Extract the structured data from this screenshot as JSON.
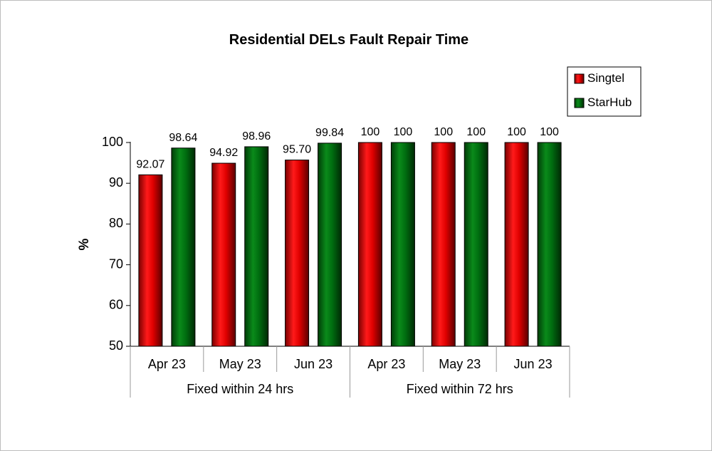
{
  "chart_data": {
    "type": "bar",
    "title": "Residential DELs Fault Repair Time",
    "ylabel": "%",
    "xlabel": "",
    "ylim": [
      50,
      100
    ],
    "yticks": [
      50,
      60,
      70,
      80,
      90,
      100
    ],
    "groups": [
      {
        "label": "Fixed within 24 hrs",
        "categories": [
          "Apr 23",
          "May 23",
          "Jun 23"
        ]
      },
      {
        "label": "Fixed within 72 hrs",
        "categories": [
          "Apr 23",
          "May 23",
          "Jun 23"
        ]
      }
    ],
    "categories": [
      "Apr 23",
      "May 23",
      "Jun 23",
      "Apr 23",
      "May 23",
      "Jun 23"
    ],
    "series": [
      {
        "name": "Singtel",
        "color": "#e00000",
        "values": [
          92.07,
          94.92,
          95.7,
          100,
          100,
          100
        ],
        "labels": [
          "92.07",
          "94.92",
          "95.70",
          "100",
          "100",
          "100"
        ]
      },
      {
        "name": "StarHub",
        "color": "#007a10",
        "values": [
          98.64,
          98.96,
          99.84,
          100,
          100,
          100
        ],
        "labels": [
          "98.64",
          "98.96",
          "99.84",
          "100",
          "100",
          "100"
        ]
      }
    ],
    "grid": false,
    "legend": "top-right"
  }
}
